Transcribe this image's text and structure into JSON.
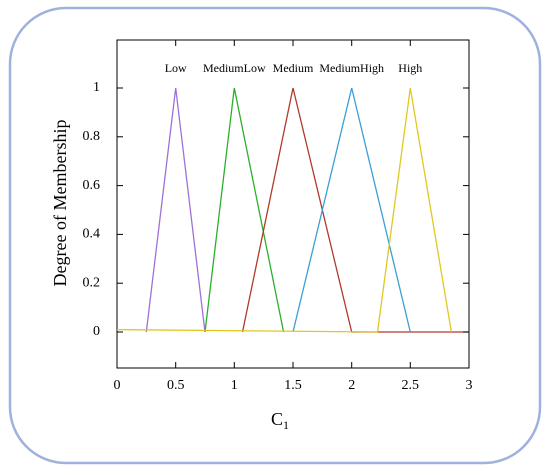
{
  "chart_data": {
    "type": "line",
    "title": "",
    "xlabel": "C",
    "xlabel_subscript": "1",
    "ylabel": "Degree of Membership",
    "xlim": [
      0,
      3
    ],
    "ylim": [
      0,
      1.1
    ],
    "xticks": [
      {
        "value": 0,
        "label": "0"
      },
      {
        "value": 0.5,
        "label": "0.5"
      },
      {
        "value": 1,
        "label": "1"
      },
      {
        "value": 1.5,
        "label": "1.5"
      },
      {
        "value": 2,
        "label": "2"
      },
      {
        "value": 2.5,
        "label": "2.5"
      },
      {
        "value": 3,
        "label": "3"
      }
    ],
    "yticks": [
      {
        "value": 0,
        "label": "0"
      },
      {
        "value": 0.2,
        "label": "0.2"
      },
      {
        "value": 0.4,
        "label": "0.4"
      },
      {
        "value": 0.6,
        "label": "0.6"
      },
      {
        "value": 0.8,
        "label": "0.8"
      },
      {
        "value": 1,
        "label": "1"
      }
    ],
    "grid": false,
    "series": [
      {
        "name": "Low",
        "color": "#a070d8",
        "x": [
          0.25,
          0.5,
          0.75
        ],
        "y": [
          0,
          1,
          0
        ]
      },
      {
        "name": "MediumLow",
        "color": "#2bb02b",
        "x": [
          0.75,
          1.0,
          1.42
        ],
        "y": [
          0,
          1,
          0
        ]
      },
      {
        "name": "Medium",
        "color": "#b03a2a",
        "x": [
          1.07,
          1.5,
          2.0,
          3.0
        ],
        "y": [
          0,
          1,
          0,
          0
        ]
      },
      {
        "name": "MediumHigh",
        "color": "#3a9fd8",
        "x": [
          1.5,
          2.0,
          2.5
        ],
        "y": [
          0,
          1,
          0
        ]
      },
      {
        "name": "High",
        "color": "#e0c820",
        "x": [
          0,
          2.22,
          2.5,
          2.85
        ],
        "y": [
          0.01,
          0,
          1,
          0
        ]
      }
    ]
  },
  "colors": {
    "frame_border": "#9fb2de",
    "axis": "#000000"
  }
}
